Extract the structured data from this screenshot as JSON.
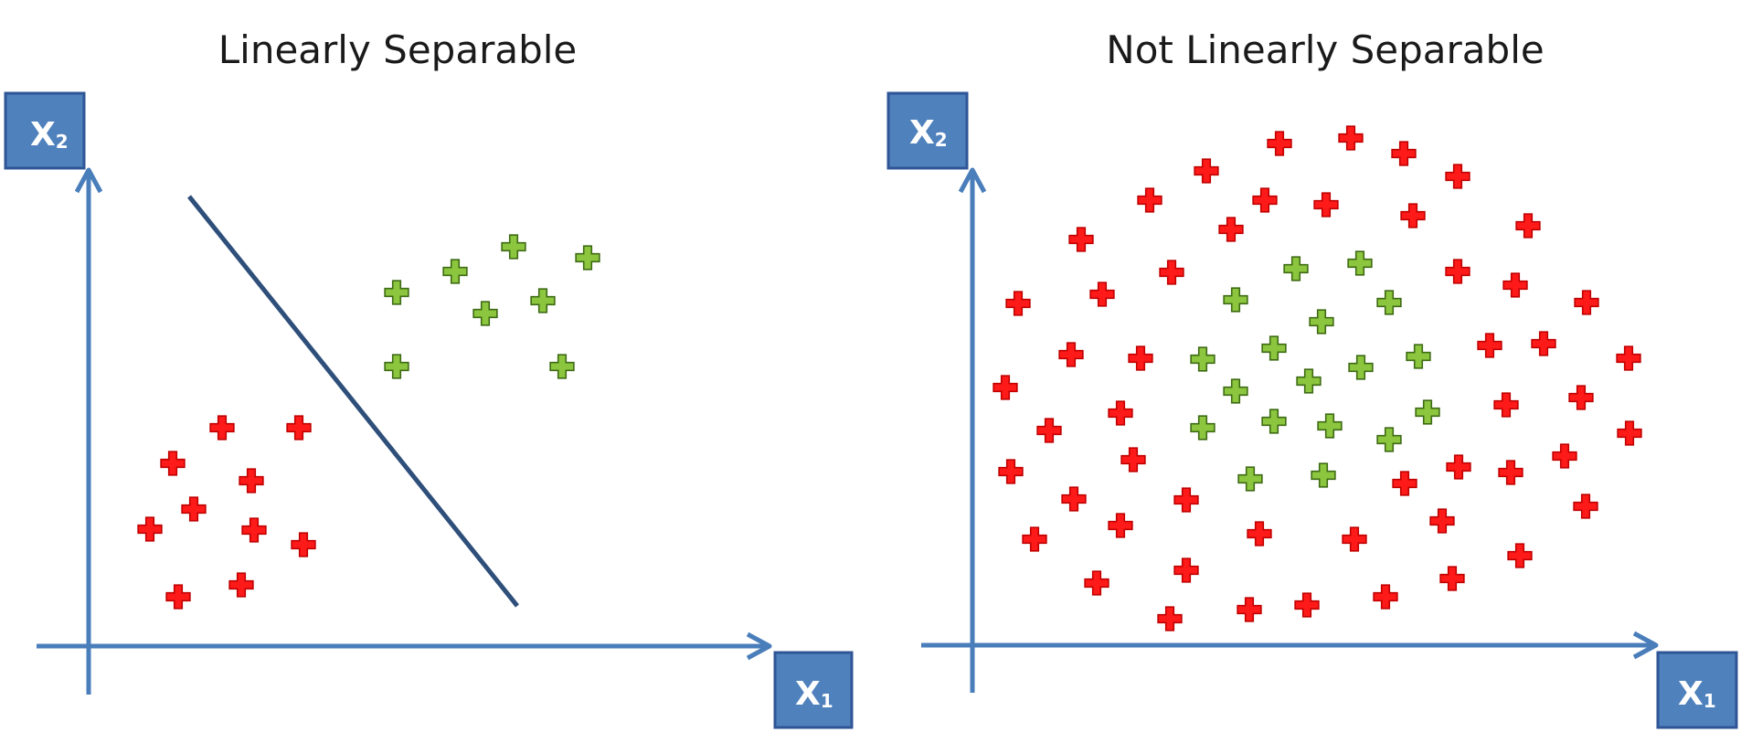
{
  "panels": {
    "left": {
      "title": "Linearly Separable",
      "x_axis_label": "X",
      "x_axis_sub": "1",
      "y_axis_label": "X",
      "y_axis_sub": "2"
    },
    "right": {
      "title": "Not Linearly Separable",
      "x_axis_label": "X",
      "x_axis_sub": "1",
      "y_axis_label": "X",
      "y_axis_sub": "2"
    }
  },
  "colors": {
    "axis": "#4a7ebb",
    "label_box": "#4f81bd",
    "label_box_border": "#2f5597",
    "red": "#ff1a1a",
    "red_stroke": "#c00000",
    "green": "#8cc63f",
    "green_stroke": "#3e6b14",
    "separator": "#2e4f7a"
  },
  "icons": {
    "marker_class_a": "plus-icon-red",
    "marker_class_b": "plus-icon-green"
  }
}
